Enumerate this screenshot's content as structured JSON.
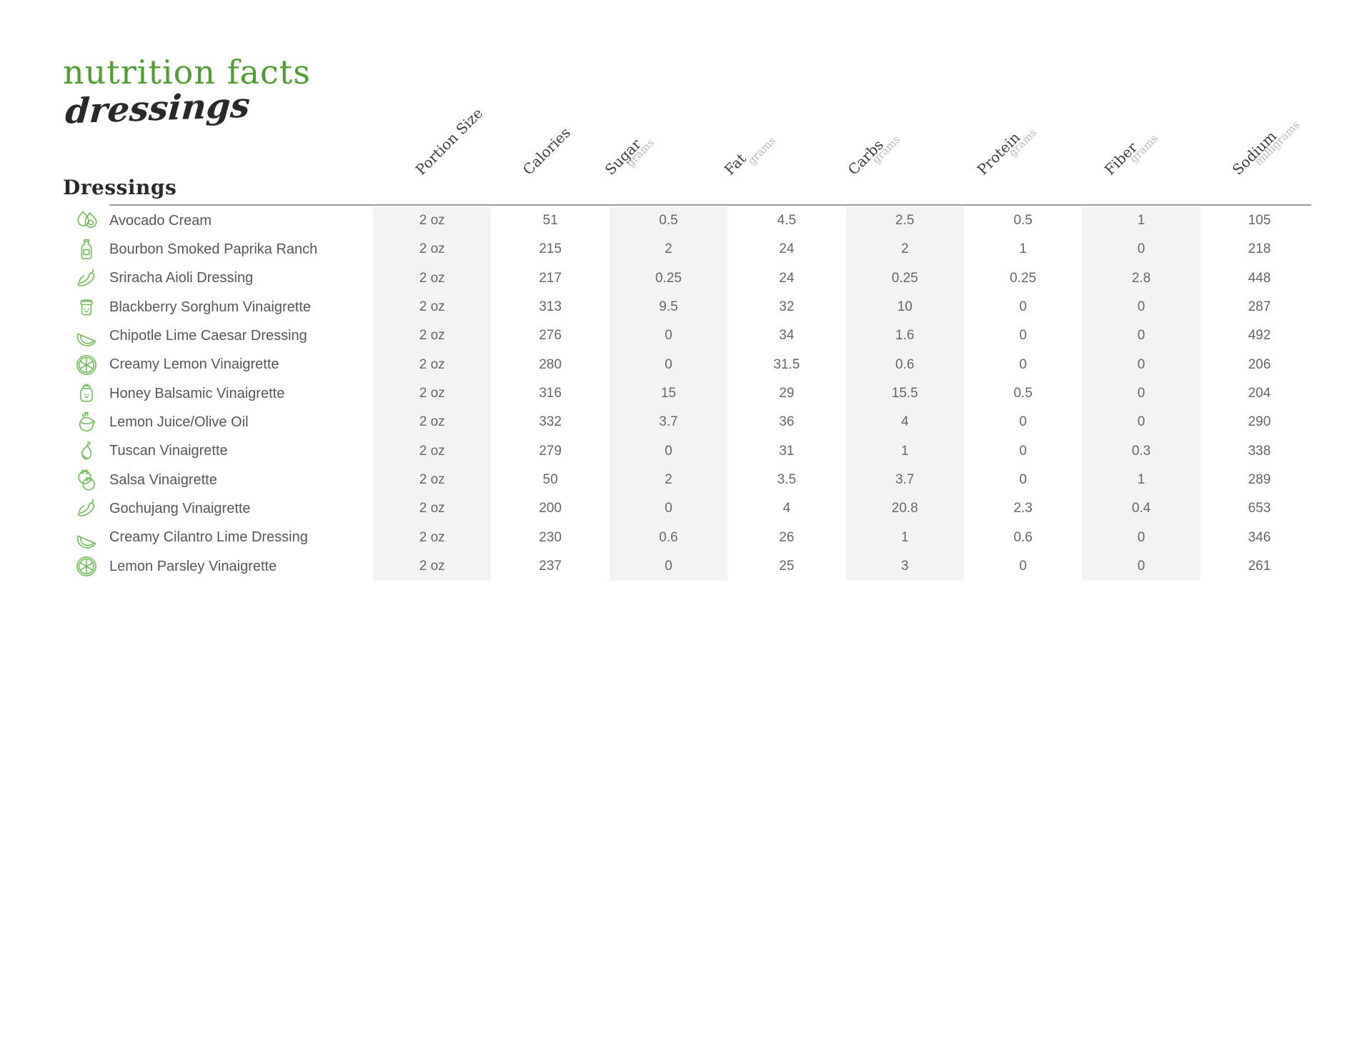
{
  "header": {
    "title": "nutrition facts",
    "subtitle": "dressings",
    "section_title": "Dressings"
  },
  "table": {
    "columns": [
      {
        "label": "Portion Size",
        "sub": ""
      },
      {
        "label": "Calories",
        "sub": ""
      },
      {
        "label": "Sugar",
        "sub": "grams"
      },
      {
        "label": "Fat",
        "sub": "grams"
      },
      {
        "label": "Carbs",
        "sub": "grams"
      },
      {
        "label": "Protein",
        "sub": "grams"
      },
      {
        "label": "Fiber",
        "sub": "grams"
      },
      {
        "label": "Sodium",
        "sub": "milligrams"
      }
    ],
    "rows": [
      {
        "icon": "avocado-icon",
        "name": "Avocado Cream",
        "values": [
          "2 oz",
          "51",
          "0.5",
          "4.5",
          "2.5",
          "0.5",
          "1",
          "105"
        ]
      },
      {
        "icon": "sauce-bottle-icon",
        "name": "Bourbon Smoked Paprika Ranch",
        "values": [
          "2 oz",
          "215",
          "2",
          "24",
          "2",
          "1",
          "0",
          "218"
        ]
      },
      {
        "icon": "chili-pepper-icon",
        "name": "Sriracha Aioli Dressing",
        "values": [
          "2 oz",
          "217",
          "0.25",
          "24",
          "0.25",
          "0.25",
          "2.8",
          "448"
        ]
      },
      {
        "icon": "jam-jar-icon",
        "name": "Blackberry Sorghum Vinaigrette",
        "values": [
          "2 oz",
          "313",
          "9.5",
          "32",
          "10",
          "0",
          "0",
          "287"
        ]
      },
      {
        "icon": "lime-wedge-icon",
        "name": "Chipotle Lime Caesar Dressing",
        "values": [
          "2 oz",
          "276",
          "0",
          "34",
          "1.6",
          "0",
          "0",
          "492"
        ]
      },
      {
        "icon": "citrus-slice-icon",
        "name": "Creamy Lemon Vinaigrette",
        "values": [
          "2 oz",
          "280",
          "0",
          "31.5",
          "0.6",
          "0",
          "0",
          "206"
        ]
      },
      {
        "icon": "dressing-jar-icon",
        "name": "Honey Balsamic Vinaigrette",
        "values": [
          "2 oz",
          "316",
          "15",
          "29",
          "15.5",
          "0.5",
          "0",
          "204"
        ]
      },
      {
        "icon": "oil-flask-icon",
        "name": "Lemon Juice/Olive Oil",
        "values": [
          "2 oz",
          "332",
          "3.7",
          "36",
          "4",
          "0",
          "0",
          "290"
        ]
      },
      {
        "icon": "cruet-icon",
        "name": "Tuscan Vinaigrette",
        "values": [
          "2 oz",
          "279",
          "0",
          "31",
          "1",
          "0",
          "0.3",
          "338"
        ]
      },
      {
        "icon": "tomato-icon",
        "name": "Salsa Vinaigrette",
        "values": [
          "2 oz",
          "50",
          "2",
          "3.5",
          "3.7",
          "0",
          "1",
          "289"
        ]
      },
      {
        "icon": "chili-pepper-icon",
        "name": "Gochujang Vinaigrette",
        "values": [
          "2 oz",
          "200",
          "0",
          "4",
          "20.8",
          "2.3",
          "0.4",
          "653"
        ]
      },
      {
        "icon": "lime-wedge-icon",
        "name": "Creamy Cilantro Lime Dressing",
        "values": [
          "2 oz",
          "230",
          "0.6",
          "26",
          "1",
          "0.6",
          "0",
          "346"
        ]
      },
      {
        "icon": "citrus-slice-icon",
        "name": "Lemon Parsley Vinaigrette",
        "values": [
          "2 oz",
          "237",
          "0",
          "25",
          "3",
          "0",
          "0",
          "261"
        ]
      }
    ]
  },
  "colors": {
    "title_green": "#519e30",
    "icon_green": "#6fbb58",
    "band_gray": "#f3f3f3",
    "rule_gray": "#9b9b9b",
    "name_text": "#54565a",
    "value_text": "#636567"
  }
}
